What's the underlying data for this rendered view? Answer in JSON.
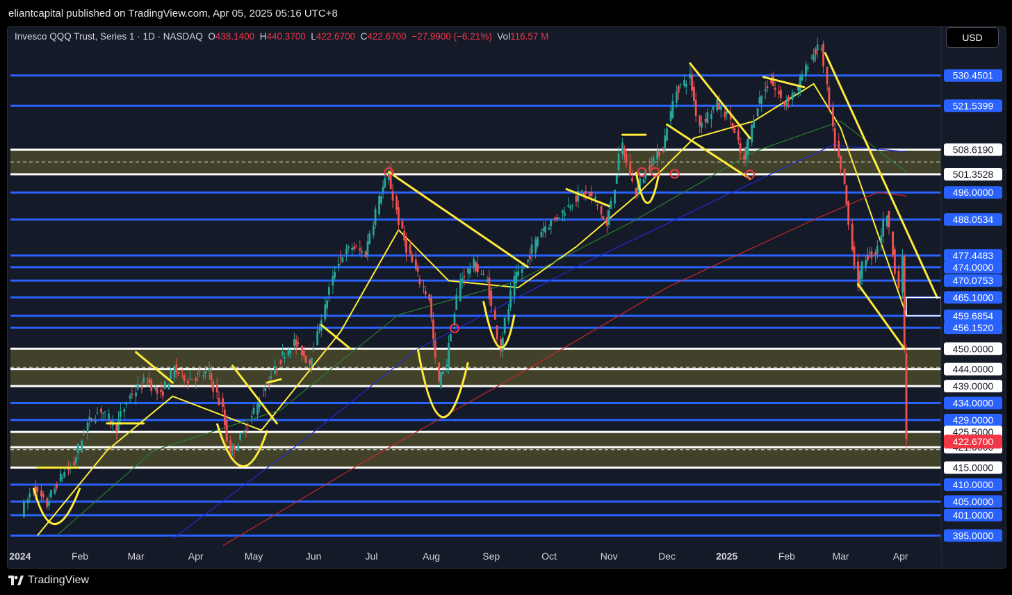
{
  "header": {
    "attribution": "eliantcapital published on TradingView.com, Apr 05, 2025 05:16 UTC+8"
  },
  "legend": {
    "symbol": "Invesco QQQ Trust, Series 1 · 1D · NASDAQ",
    "open_label": "O",
    "open": "438.1400",
    "high_label": "H",
    "high": "440.3700",
    "low_label": "L",
    "low": "422.6700",
    "close_label": "C",
    "close": "422.6700",
    "change": "−27.9900 (−6.21%)",
    "vol_label": "Vol",
    "vol": "116.57 M"
  },
  "currency_button": "USD",
  "footer": {
    "brand": "TradingView"
  },
  "colors": {
    "level_blue": "#2962ff",
    "zone_fill": "#4a4a2c",
    "trend_yellow": "#ffeb3b",
    "last_price_red": "#f23645",
    "up_candle": "#26a69a",
    "down_candle": "#ef5350"
  },
  "chart_data": {
    "type": "candlestick",
    "symbol": "QQQ",
    "timeframe": "1D",
    "y_axis_range": [
      392,
      540
    ],
    "x_tick_labels": [
      "2024",
      "Feb",
      "Mar",
      "Apr",
      "May",
      "Jun",
      "Jul",
      "Aug",
      "Sep",
      "Oct",
      "Nov",
      "Dec",
      "2025",
      "Feb",
      "Mar",
      "Apr"
    ],
    "x_tick_dates": [
      "2024-01-01",
      "2024-02-01",
      "2024-03-01",
      "2024-04-01",
      "2024-05-01",
      "2024-06-01",
      "2024-07-01",
      "2024-08-01",
      "2024-09-01",
      "2024-10-01",
      "2024-11-01",
      "2024-12-01",
      "2025-01-01",
      "2025-02-01",
      "2025-03-01",
      "2025-04-01"
    ],
    "horizontal_levels": [
      {
        "label": "530.4501",
        "value": 530.4501,
        "color": "blue"
      },
      {
        "label": "521.5399",
        "value": 521.5399,
        "color": "blue"
      },
      {
        "label": "508.6190",
        "value": 508.619,
        "color": "white"
      },
      {
        "label": "501.3528",
        "value": 501.3528,
        "color": "white"
      },
      {
        "label": "496.0000",
        "value": 496.0,
        "color": "blue"
      },
      {
        "label": "488.0534",
        "value": 488.0534,
        "color": "blue"
      },
      {
        "label": "477.4483",
        "value": 477.4483,
        "color": "blue"
      },
      {
        "label": "474.0000",
        "value": 474.0,
        "color": "blue"
      },
      {
        "label": "470.0753",
        "value": 470.0753,
        "color": "blue"
      },
      {
        "label": "465.1000",
        "value": 465.1,
        "color": "blue"
      },
      {
        "label": "459.6854",
        "value": 459.6854,
        "color": "blue"
      },
      {
        "label": "456.1520",
        "value": 456.152,
        "color": "blue"
      },
      {
        "label": "450.0000",
        "value": 450.0,
        "color": "white"
      },
      {
        "label": "444.0000",
        "value": 444.0,
        "color": "white"
      },
      {
        "label": "439.0000",
        "value": 439.0,
        "color": "white"
      },
      {
        "label": "434.0000",
        "value": 434.0,
        "color": "blue"
      },
      {
        "label": "429.0000",
        "value": 429.0,
        "color": "blue"
      },
      {
        "label": "425.5000",
        "value": 425.5,
        "color": "white"
      },
      {
        "label": "421.0000",
        "value": 421.0,
        "color": "white"
      },
      {
        "label": "415.0000",
        "value": 415.0,
        "color": "white"
      },
      {
        "label": "410.0000",
        "value": 410.0,
        "color": "blue"
      },
      {
        "label": "405.0000",
        "value": 405.0,
        "color": "blue"
      },
      {
        "label": "401.0000",
        "value": 401.0,
        "color": "blue"
      },
      {
        "label": "395.0000",
        "value": 395.0,
        "color": "blue"
      }
    ],
    "zones": [
      {
        "from": 501.3528,
        "to": 508.619
      },
      {
        "from": 439.0,
        "to": 450.0
      },
      {
        "from": 415.0,
        "to": 425.5
      }
    ],
    "last_price": {
      "label": "422.6700",
      "value": 422.67
    },
    "price_path": [
      {
        "date": "2024-01-02",
        "close": 402
      },
      {
        "date": "2024-01-08",
        "close": 409
      },
      {
        "date": "2024-01-15",
        "close": 404
      },
      {
        "date": "2024-01-22",
        "close": 412
      },
      {
        "date": "2024-01-29",
        "close": 416
      },
      {
        "date": "2024-02-05",
        "close": 428
      },
      {
        "date": "2024-02-12",
        "close": 432
      },
      {
        "date": "2024-02-20",
        "close": 427
      },
      {
        "date": "2024-02-27",
        "close": 436
      },
      {
        "date": "2024-03-07",
        "close": 441
      },
      {
        "date": "2024-03-14",
        "close": 436
      },
      {
        "date": "2024-03-21",
        "close": 444
      },
      {
        "date": "2024-03-28",
        "close": 441
      },
      {
        "date": "2024-04-08",
        "close": 443
      },
      {
        "date": "2024-04-15",
        "close": 432
      },
      {
        "date": "2024-04-19",
        "close": 419
      },
      {
        "date": "2024-04-26",
        "close": 425
      },
      {
        "date": "2024-05-06",
        "close": 437
      },
      {
        "date": "2024-05-15",
        "close": 447
      },
      {
        "date": "2024-05-22",
        "close": 452
      },
      {
        "date": "2024-05-30",
        "close": 446
      },
      {
        "date": "2024-06-07",
        "close": 462
      },
      {
        "date": "2024-06-14",
        "close": 476
      },
      {
        "date": "2024-06-21",
        "close": 480
      },
      {
        "date": "2024-06-28",
        "close": 478
      },
      {
        "date": "2024-07-05",
        "close": 494
      },
      {
        "date": "2024-07-10",
        "close": 501
      },
      {
        "date": "2024-07-17",
        "close": 484
      },
      {
        "date": "2024-07-24",
        "close": 473
      },
      {
        "date": "2024-07-31",
        "close": 465
      },
      {
        "date": "2024-08-05",
        "close": 440
      },
      {
        "date": "2024-08-09",
        "close": 446
      },
      {
        "date": "2024-08-16",
        "close": 470
      },
      {
        "date": "2024-08-23",
        "close": 475
      },
      {
        "date": "2024-08-30",
        "close": 470
      },
      {
        "date": "2024-09-06",
        "close": 450
      },
      {
        "date": "2024-09-13",
        "close": 470
      },
      {
        "date": "2024-09-20",
        "close": 476
      },
      {
        "date": "2024-09-27",
        "close": 485
      },
      {
        "date": "2024-10-04",
        "close": 488
      },
      {
        "date": "2024-10-11",
        "close": 492
      },
      {
        "date": "2024-10-18",
        "close": 496
      },
      {
        "date": "2024-10-25",
        "close": 494
      },
      {
        "date": "2024-10-31",
        "close": 486
      },
      {
        "date": "2024-11-08",
        "close": 510
      },
      {
        "date": "2024-11-15",
        "close": 496
      },
      {
        "date": "2024-11-22",
        "close": 504
      },
      {
        "date": "2024-11-29",
        "close": 509
      },
      {
        "date": "2024-12-06",
        "close": 526
      },
      {
        "date": "2024-12-13",
        "close": 530
      },
      {
        "date": "2024-12-18",
        "close": 516
      },
      {
        "date": "2024-12-27",
        "close": 522
      },
      {
        "date": "2025-01-03",
        "close": 518
      },
      {
        "date": "2025-01-10",
        "close": 505
      },
      {
        "date": "2025-01-17",
        "close": 522
      },
      {
        "date": "2025-01-24",
        "close": 529
      },
      {
        "date": "2025-01-31",
        "close": 522
      },
      {
        "date": "2025-02-07",
        "close": 527
      },
      {
        "date": "2025-02-14",
        "close": 536
      },
      {
        "date": "2025-02-19",
        "close": 539
      },
      {
        "date": "2025-02-25",
        "close": 514
      },
      {
        "date": "2025-03-03",
        "close": 498
      },
      {
        "date": "2025-03-10",
        "close": 469
      },
      {
        "date": "2025-03-14",
        "close": 477
      },
      {
        "date": "2025-03-19",
        "close": 478
      },
      {
        "date": "2025-03-25",
        "close": 490
      },
      {
        "date": "2025-03-31",
        "close": 468
      },
      {
        "date": "2025-04-02",
        "close": 476
      },
      {
        "date": "2025-04-03",
        "close": 450
      },
      {
        "date": "2025-04-04",
        "close": 422.67
      }
    ],
    "moving_averages": [
      {
        "color": "yellow",
        "points": [
          {
            "date": "2024-01-10",
            "value": 395
          },
          {
            "date": "2024-02-15",
            "value": 420
          },
          {
            "date": "2024-03-20",
            "value": 436
          },
          {
            "date": "2024-05-05",
            "value": 426
          },
          {
            "date": "2024-06-15",
            "value": 455
          },
          {
            "date": "2024-07-15",
            "value": 485
          },
          {
            "date": "2024-08-10",
            "value": 470
          },
          {
            "date": "2024-09-15",
            "value": 468
          },
          {
            "date": "2024-10-15",
            "value": 480
          },
          {
            "date": "2024-11-15",
            "value": 495
          },
          {
            "date": "2024-12-15",
            "value": 512
          },
          {
            "date": "2025-01-15",
            "value": 517
          },
          {
            "date": "2025-02-15",
            "value": 528
          },
          {
            "date": "2025-03-01",
            "value": 515
          },
          {
            "date": "2025-04-04",
            "value": 460
          }
        ]
      },
      {
        "color": "green",
        "points": [
          {
            "date": "2024-01-20",
            "value": 395
          },
          {
            "date": "2024-03-10",
            "value": 420
          },
          {
            "date": "2024-05-15",
            "value": 432
          },
          {
            "date": "2024-07-15",
            "value": 460
          },
          {
            "date": "2024-09-15",
            "value": 470
          },
          {
            "date": "2024-11-15",
            "value": 488
          },
          {
            "date": "2025-01-15",
            "value": 508
          },
          {
            "date": "2025-03-01",
            "value": 517
          },
          {
            "date": "2025-04-04",
            "value": 502
          }
        ]
      },
      {
        "color": "blue",
        "points": [
          {
            "date": "2024-03-20",
            "value": 394
          },
          {
            "date": "2024-05-20",
            "value": 420
          },
          {
            "date": "2024-07-25",
            "value": 450
          },
          {
            "date": "2024-10-15",
            "value": 474
          },
          {
            "date": "2024-12-31",
            "value": 495
          },
          {
            "date": "2025-02-25",
            "value": 510
          },
          {
            "date": "2025-04-04",
            "value": 508
          }
        ]
      },
      {
        "color": "red",
        "points": [
          {
            "date": "2024-04-15",
            "value": 392
          },
          {
            "date": "2024-07-01",
            "value": 418
          },
          {
            "date": "2024-09-20",
            "value": 444
          },
          {
            "date": "2024-12-01",
            "value": 468
          },
          {
            "date": "2025-02-15",
            "value": 488
          },
          {
            "date": "2025-03-20",
            "value": 496
          },
          {
            "date": "2025-04-04",
            "value": 495
          }
        ]
      }
    ]
  }
}
